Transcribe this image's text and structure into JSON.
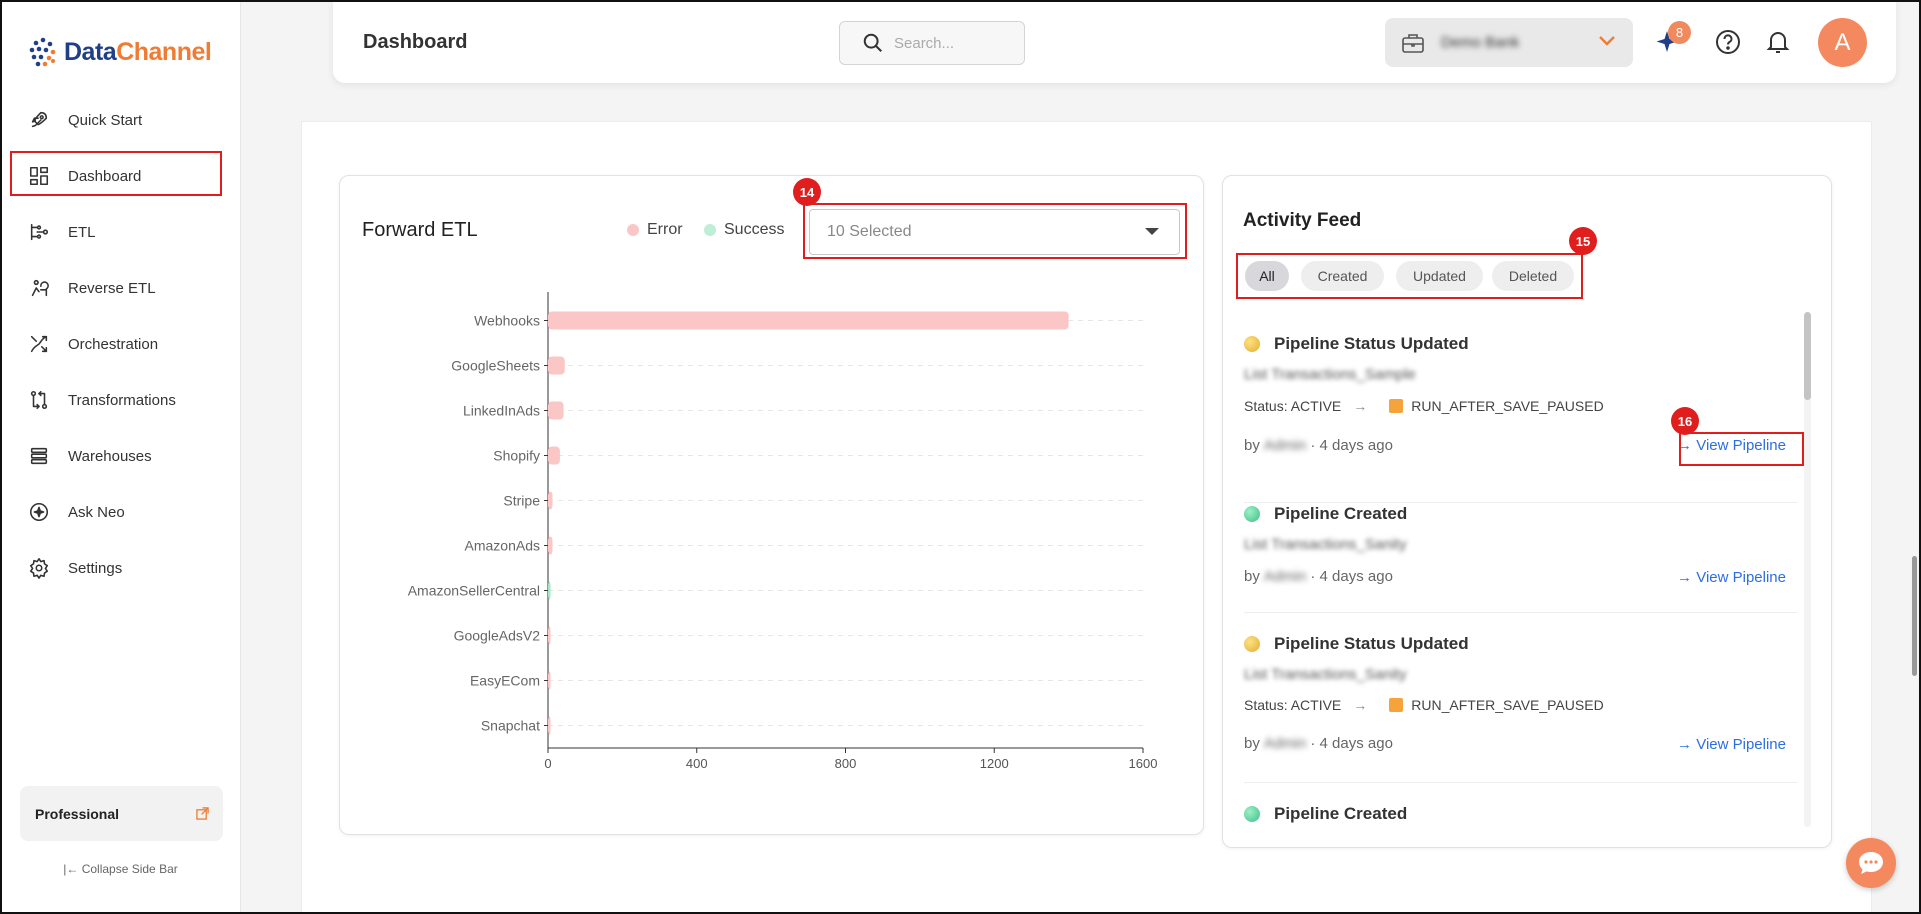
{
  "app": {
    "name_part1": "Data",
    "name_part2": "Channel"
  },
  "sidebar": {
    "items": [
      {
        "label": "Quick Start",
        "icon": "rocket-icon"
      },
      {
        "label": "Dashboard",
        "icon": "dashboard-icon"
      },
      {
        "label": "ETL",
        "icon": "etl-icon"
      },
      {
        "label": "Reverse ETL",
        "icon": "reverse-etl-icon"
      },
      {
        "label": "Orchestration",
        "icon": "orchestration-icon"
      },
      {
        "label": "Transformations",
        "icon": "transformations-icon"
      },
      {
        "label": "Warehouses",
        "icon": "warehouses-icon"
      },
      {
        "label": "Ask Neo",
        "icon": "ask-neo-icon"
      },
      {
        "label": "Settings",
        "icon": "settings-icon"
      }
    ],
    "plan_label": "Professional",
    "collapse_label": "Collapse Side Bar"
  },
  "header": {
    "title": "Dashboard",
    "search_placeholder": "Search...",
    "workspace_name": "Demo Bank",
    "notification_count": "8",
    "avatar_initial": "A"
  },
  "forward_etl": {
    "title": "Forward ETL",
    "legend": {
      "error": "Error",
      "success": "Success"
    },
    "select_value": "10 Selected"
  },
  "annotations": {
    "step14": "14",
    "step15": "15",
    "step16": "16"
  },
  "chart_data": {
    "type": "bar",
    "orientation": "horizontal",
    "categories": [
      "Webhooks",
      "GoogleSheets",
      "LinkedInAds",
      "Shopify",
      "Stripe",
      "AmazonAds",
      "AmazonSellerCentral",
      "GoogleAdsV2",
      "EasyECom",
      "Snapchat"
    ],
    "series": [
      {
        "name": "Error",
        "values": [
          1400,
          45,
          42,
          32,
          12,
          12,
          0,
          5,
          4,
          4
        ],
        "color": "#fbc6c6"
      },
      {
        "name": "Success",
        "values": [
          0,
          0,
          0,
          0,
          0,
          0,
          4,
          0,
          0,
          0
        ],
        "color": "#a8e6c8"
      }
    ],
    "xlim": [
      0,
      1600
    ],
    "xticks": [
      "0",
      "400",
      "800",
      "1200",
      "1600"
    ],
    "grid": true
  },
  "activity_feed": {
    "title": "Activity Feed",
    "filters": [
      "All",
      "Created",
      "Updated",
      "Deleted"
    ],
    "active_filter": "All",
    "items": [
      {
        "title": "Pipeline Status Updated",
        "name": "List Transactions_Sample",
        "status_from": "Status: ACTIVE",
        "status_to": "RUN_AFTER_SAVE_PAUSED",
        "by": "by",
        "user": "Admin",
        "time": "· 4 days ago",
        "link": "→ View Pipeline"
      },
      {
        "title": "Pipeline Created",
        "name": "List Transactions_Sanity",
        "by": "by",
        "user": "Admin",
        "time": "· 4 days ago",
        "link": "→ View Pipeline"
      },
      {
        "title": "Pipeline Status Updated",
        "name": "List Transactions_Sanity",
        "status_from": "Status: ACTIVE",
        "status_to": "RUN_AFTER_SAVE_PAUSED",
        "by": "by",
        "user": "Admin",
        "time": "· 4 days ago",
        "link": "→ View Pipeline"
      },
      {
        "title": "Pipeline Created"
      }
    ]
  }
}
